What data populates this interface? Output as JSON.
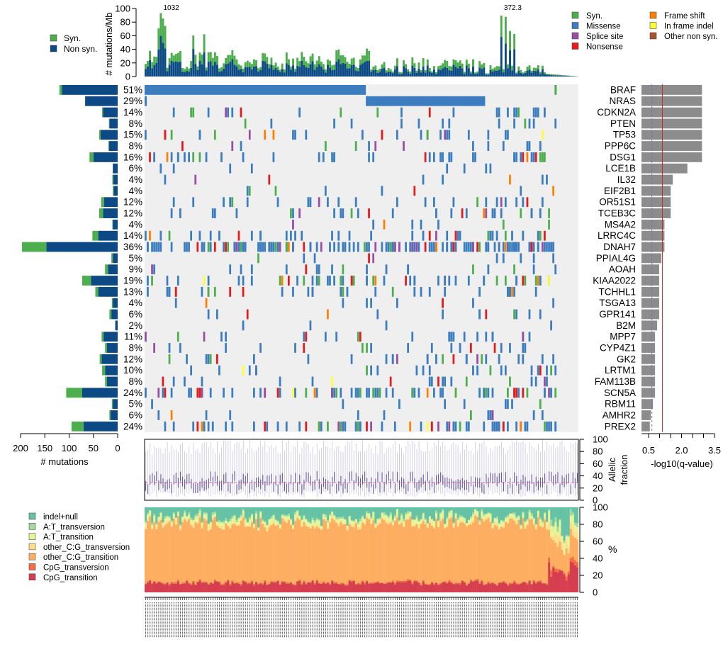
{
  "chart_data": {
    "type": "oncoplot",
    "n_samples": 200,
    "genes": [
      {
        "name": "BRAF",
        "pct": "51%",
        "syn": 5,
        "nonsyn": 115,
        "q": 2.9
      },
      {
        "name": "NRAS",
        "pct": "29%",
        "syn": 0,
        "nonsyn": 67,
        "q": 2.9
      },
      {
        "name": "CDKN2A",
        "pct": "14%",
        "syn": 2,
        "nonsyn": 30,
        "q": 2.9
      },
      {
        "name": "PTEN",
        "pct": "8%",
        "syn": 1,
        "nonsyn": 17,
        "q": 2.9
      },
      {
        "name": "TP53",
        "pct": "15%",
        "syn": 3,
        "nonsyn": 35,
        "q": 2.9
      },
      {
        "name": "PPP6C",
        "pct": "8%",
        "syn": 1,
        "nonsyn": 18,
        "q": 2.9
      },
      {
        "name": "DSG1",
        "pct": "16%",
        "syn": 8,
        "nonsyn": 50,
        "q": 2.9
      },
      {
        "name": "LCE1B",
        "pct": "6%",
        "syn": 0,
        "nonsyn": 10,
        "q": 2.2
      },
      {
        "name": "IL32",
        "pct": "4%",
        "syn": 2,
        "nonsyn": 9,
        "q": 1.5
      },
      {
        "name": "EIF2B1",
        "pct": "4%",
        "syn": 2,
        "nonsyn": 8,
        "q": 1.4
      },
      {
        "name": "OR51S1",
        "pct": "12%",
        "syn": 6,
        "nonsyn": 28,
        "q": 1.4
      },
      {
        "name": "TCEB3C",
        "pct": "12%",
        "syn": 8,
        "nonsyn": 30,
        "q": 1.4
      },
      {
        "name": "MS4A2",
        "pct": "4%",
        "syn": 1,
        "nonsyn": 10,
        "q": 1.1
      },
      {
        "name": "LRRC4C",
        "pct": "14%",
        "syn": 12,
        "nonsyn": 40,
        "q": 1.1
      },
      {
        "name": "DNAH7",
        "pct": "36%",
        "syn": 50,
        "nonsyn": 147,
        "q": 1.1
      },
      {
        "name": "PPIAL4G",
        "pct": "5%",
        "syn": 3,
        "nonsyn": 10,
        "q": 0.95
      },
      {
        "name": "AOAH",
        "pct": "9%",
        "syn": 6,
        "nonsyn": 20,
        "q": 0.85
      },
      {
        "name": "KIAA2022",
        "pct": "19%",
        "syn": 18,
        "nonsyn": 55,
        "q": 0.85
      },
      {
        "name": "TCHHL1",
        "pct": "13%",
        "syn": 6,
        "nonsyn": 40,
        "q": 0.85
      },
      {
        "name": "TSGA13",
        "pct": "4%",
        "syn": 2,
        "nonsyn": 10,
        "q": 0.85
      },
      {
        "name": "GPR141",
        "pct": "6%",
        "syn": 4,
        "nonsyn": 13,
        "q": 0.85
      },
      {
        "name": "B2M",
        "pct": "2%",
        "syn": 0,
        "nonsyn": 5,
        "q": 0.75
      },
      {
        "name": "MPP7",
        "pct": "11%",
        "syn": 4,
        "nonsyn": 29,
        "q": 0.65
      },
      {
        "name": "CYP4Z1",
        "pct": "8%",
        "syn": 4,
        "nonsyn": 22,
        "q": 0.65
      },
      {
        "name": "GK2",
        "pct": "12%",
        "syn": 4,
        "nonsyn": 33,
        "q": 0.65
      },
      {
        "name": "LRTM1",
        "pct": "10%",
        "syn": 6,
        "nonsyn": 26,
        "q": 0.65
      },
      {
        "name": "FAM113B",
        "pct": "8%",
        "syn": 4,
        "nonsyn": 22,
        "q": 0.65
      },
      {
        "name": "SCN5A",
        "pct": "24%",
        "syn": 33,
        "nonsyn": 73,
        "q": 0.65
      },
      {
        "name": "RBM11",
        "pct": "5%",
        "syn": 2,
        "nonsyn": 10,
        "q": 0.55
      },
      {
        "name": "AMHR2",
        "pct": "6%",
        "syn": 2,
        "nonsyn": 15,
        "q": 0.45
      },
      {
        "name": "PREX2",
        "pct": "24%",
        "syn": 25,
        "nonsyn": 70,
        "q": 0.4
      }
    ],
    "top_axis": {
      "label": "# mutations/Mb",
      "ticks": [
        0,
        20,
        40,
        60,
        80,
        100
      ],
      "ylim": [
        0,
        100
      ]
    },
    "left_axis": {
      "label": "# mutations",
      "ticks": [
        200,
        150,
        100,
        50,
        0
      ]
    },
    "right_axis": {
      "label": "-log10(q-value)",
      "ticks": [
        "0.5",
        "1.0",
        "1.5",
        "2.0",
        "2.5",
        "3.0",
        "3.5"
      ],
      "tick_labels": [
        "0.5",
        "2.0",
        "3.5"
      ],
      "significance_line": 1.0,
      "dashed_line": 0.5,
      "xlim": [
        0,
        3.5
      ]
    },
    "af_axis": {
      "label": "Allelic fraction",
      "ticks": [
        0,
        20,
        40,
        60,
        80,
        100
      ],
      "median": 29
    },
    "spectrum_axis": {
      "label": "%",
      "ticks": [
        0,
        20,
        40,
        60,
        80,
        100
      ]
    },
    "legend_burden": [
      {
        "label": "Syn.",
        "color": "#4cae4c"
      },
      {
        "label": "Non syn.",
        "color": "#0d4a85"
      }
    ],
    "legend_types": [
      {
        "label": "Syn.",
        "color": "#4cae4c"
      },
      {
        "label": "Missense",
        "color": "#3b7dbe"
      },
      {
        "label": "Splice site",
        "color": "#984ea3"
      },
      {
        "label": "Nonsense",
        "color": "#e41a1c"
      },
      {
        "label": "Frame shift",
        "color": "#ff7f00"
      },
      {
        "label": "In frame indel",
        "color": "#ffff33"
      },
      {
        "label": "Other non syn.",
        "color": "#a65628"
      }
    ],
    "legend_spectrum": [
      {
        "label": "indel+null",
        "color": "#66c2a4"
      },
      {
        "label": "A:T_transversion",
        "color": "#a6dba0"
      },
      {
        "label": "A:T_transition",
        "color": "#e6f598"
      },
      {
        "label": "other_C:G_transversion",
        "color": "#fee08b"
      },
      {
        "label": "other_C:G_transition",
        "color": "#fdae61"
      },
      {
        "label": "CpG_transversion",
        "color": "#f46d43"
      },
      {
        "label": "CpG_transition",
        "color": "#d53e4f"
      }
    ],
    "top_annotations": [
      "1032",
      "372.3"
    ]
  }
}
